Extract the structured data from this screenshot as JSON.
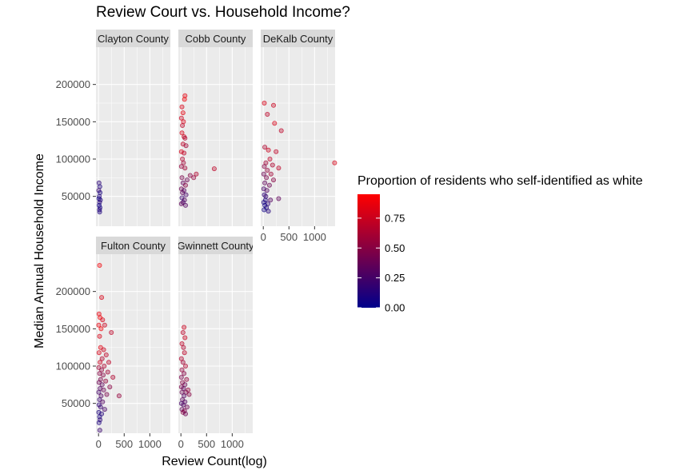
{
  "chart_data": {
    "type": "scatter",
    "title": "Review Court vs. Household Income?",
    "xlabel": "Review Count(log)",
    "ylabel": "Median Annual Household Income",
    "xlim": [
      -50,
      1400
    ],
    "ylim": [
      10000,
      250000
    ],
    "x_ticks": [
      0,
      500,
      1000
    ],
    "x_tick_labels": [
      "0",
      "500",
      "1000"
    ],
    "y_ticks": [
      50000,
      100000,
      150000,
      200000
    ],
    "y_tick_labels": [
      "50000",
      "100000",
      "150000",
      "200000"
    ],
    "grid": true,
    "legend": {
      "title": "Proportion of residents who self-identified as white",
      "position": "right",
      "ticks": [
        0.0,
        0.25,
        0.5,
        0.75
      ],
      "tick_labels": [
        "0.00",
        "0.25",
        "0.50",
        "0.75"
      ],
      "range": [
        0,
        0.95
      ],
      "color_low": "#00008B",
      "color_high": "#FF0000"
    },
    "colors": {
      "panel_bg": "#EBEBEB",
      "strip_bg": "#D9D9D9",
      "grid": "#FFFFFF"
    },
    "facets": [
      {
        "name": "Clayton County",
        "points": [
          {
            "x": 10,
            "y": 68000,
            "c": 0.15
          },
          {
            "x": 25,
            "y": 63000,
            "c": 0.1
          },
          {
            "x": 5,
            "y": 58000,
            "c": 0.2
          },
          {
            "x": 30,
            "y": 55000,
            "c": 0.08
          },
          {
            "x": 15,
            "y": 50000,
            "c": 0.12
          },
          {
            "x": 8,
            "y": 47000,
            "c": 0.05
          },
          {
            "x": 35,
            "y": 45000,
            "c": 0.1
          },
          {
            "x": 20,
            "y": 42000,
            "c": 0.15
          },
          {
            "x": 12,
            "y": 38000,
            "c": 0.05
          },
          {
            "x": 28,
            "y": 35000,
            "c": 0.08
          },
          {
            "x": 18,
            "y": 32000,
            "c": 0.12
          },
          {
            "x": 22,
            "y": 29000,
            "c": 0.1
          }
        ]
      },
      {
        "name": "Cobb County",
        "points": [
          {
            "x": 80,
            "y": 185000,
            "c": 0.85
          },
          {
            "x": 70,
            "y": 180000,
            "c": 0.9
          },
          {
            "x": 20,
            "y": 170000,
            "c": 0.8
          },
          {
            "x": 40,
            "y": 162000,
            "c": 0.85
          },
          {
            "x": 10,
            "y": 155000,
            "c": 0.75
          },
          {
            "x": 50,
            "y": 150000,
            "c": 0.8
          },
          {
            "x": 30,
            "y": 145000,
            "c": 0.7
          },
          {
            "x": 20,
            "y": 135000,
            "c": 0.8
          },
          {
            "x": 60,
            "y": 130000,
            "c": 0.75
          },
          {
            "x": 80,
            "y": 128000,
            "c": 0.65
          },
          {
            "x": 40,
            "y": 120000,
            "c": 0.7
          },
          {
            "x": 100,
            "y": 118000,
            "c": 0.6
          },
          {
            "x": 10,
            "y": 110000,
            "c": 0.8
          },
          {
            "x": 60,
            "y": 108000,
            "c": 0.7
          },
          {
            "x": 30,
            "y": 100000,
            "c": 0.65
          },
          {
            "x": 50,
            "y": 95000,
            "c": 0.6
          },
          {
            "x": 10,
            "y": 90000,
            "c": 0.55
          },
          {
            "x": 80,
            "y": 88000,
            "c": 0.6
          },
          {
            "x": 650,
            "y": 87000,
            "c": 0.7
          },
          {
            "x": 300,
            "y": 80000,
            "c": 0.65
          },
          {
            "x": 180,
            "y": 78000,
            "c": 0.5
          },
          {
            "x": 250,
            "y": 75000,
            "c": 0.55
          },
          {
            "x": 20,
            "y": 75000,
            "c": 0.45
          },
          {
            "x": 120,
            "y": 72000,
            "c": 0.4
          },
          {
            "x": 40,
            "y": 68000,
            "c": 0.35
          },
          {
            "x": 90,
            "y": 65000,
            "c": 0.5
          },
          {
            "x": 10,
            "y": 60000,
            "c": 0.4
          },
          {
            "x": 60,
            "y": 58000,
            "c": 0.3
          },
          {
            "x": 30,
            "y": 55000,
            "c": 0.35
          },
          {
            "x": 100,
            "y": 52000,
            "c": 0.25
          },
          {
            "x": 20,
            "y": 48000,
            "c": 0.2
          },
          {
            "x": 70,
            "y": 45000,
            "c": 0.3
          },
          {
            "x": 40,
            "y": 42000,
            "c": 0.25
          },
          {
            "x": 10,
            "y": 40000,
            "c": 0.35
          },
          {
            "x": 90,
            "y": 38000,
            "c": 0.3
          }
        ]
      },
      {
        "name": "DeKalb County",
        "points": [
          {
            "x": 20,
            "y": 175000,
            "c": 0.8
          },
          {
            "x": 200,
            "y": 172000,
            "c": 0.75
          },
          {
            "x": 80,
            "y": 160000,
            "c": 0.7
          },
          {
            "x": 220,
            "y": 148000,
            "c": 0.8
          },
          {
            "x": 350,
            "y": 138000,
            "c": 0.7
          },
          {
            "x": 30,
            "y": 116000,
            "c": 0.65
          },
          {
            "x": 100,
            "y": 112000,
            "c": 0.75
          },
          {
            "x": 250,
            "y": 110000,
            "c": 0.7
          },
          {
            "x": 1400,
            "y": 95000,
            "c": 0.8
          },
          {
            "x": 130,
            "y": 100000,
            "c": 0.7
          },
          {
            "x": 50,
            "y": 95000,
            "c": 0.6
          },
          {
            "x": 180,
            "y": 92000,
            "c": 0.65
          },
          {
            "x": 300,
            "y": 88000,
            "c": 0.7
          },
          {
            "x": 20,
            "y": 90000,
            "c": 0.5
          },
          {
            "x": 80,
            "y": 85000,
            "c": 0.55
          },
          {
            "x": 10,
            "y": 80000,
            "c": 0.4
          },
          {
            "x": 150,
            "y": 80000,
            "c": 0.6
          },
          {
            "x": 60,
            "y": 75000,
            "c": 0.45
          },
          {
            "x": 200,
            "y": 72000,
            "c": 0.5
          },
          {
            "x": 30,
            "y": 68000,
            "c": 0.35
          },
          {
            "x": 120,
            "y": 65000,
            "c": 0.4
          },
          {
            "x": 10,
            "y": 60000,
            "c": 0.25
          },
          {
            "x": 70,
            "y": 58000,
            "c": 0.3
          },
          {
            "x": 20,
            "y": 52000,
            "c": 0.15
          },
          {
            "x": 50,
            "y": 50000,
            "c": 0.2
          },
          {
            "x": 300,
            "y": 47000,
            "c": 0.35
          },
          {
            "x": 140,
            "y": 45000,
            "c": 0.3
          },
          {
            "x": 40,
            "y": 45000,
            "c": 0.1
          },
          {
            "x": 10,
            "y": 42000,
            "c": 0.08
          },
          {
            "x": 90,
            "y": 40000,
            "c": 0.15
          },
          {
            "x": 30,
            "y": 38000,
            "c": 0.05
          },
          {
            "x": 60,
            "y": 35000,
            "c": 0.1
          },
          {
            "x": 15,
            "y": 32000,
            "c": 0.05
          },
          {
            "x": 100,
            "y": 30000,
            "c": 0.12
          }
        ]
      },
      {
        "name": "Fulton County",
        "points": [
          {
            "x": 20,
            "y": 235000,
            "c": 0.9
          },
          {
            "x": 60,
            "y": 192000,
            "c": 0.8
          },
          {
            "x": 10,
            "y": 170000,
            "c": 0.85
          },
          {
            "x": 30,
            "y": 165000,
            "c": 0.9
          },
          {
            "x": 80,
            "y": 162000,
            "c": 0.8
          },
          {
            "x": 5,
            "y": 155000,
            "c": 0.85
          },
          {
            "x": 50,
            "y": 150000,
            "c": 0.9
          },
          {
            "x": 120,
            "y": 155000,
            "c": 0.75
          },
          {
            "x": 250,
            "y": 145000,
            "c": 0.7
          },
          {
            "x": 20,
            "y": 140000,
            "c": 0.8
          },
          {
            "x": 40,
            "y": 125000,
            "c": 0.85
          },
          {
            "x": 100,
            "y": 122000,
            "c": 0.75
          },
          {
            "x": 150,
            "y": 115000,
            "c": 0.7
          },
          {
            "x": 10,
            "y": 118000,
            "c": 0.8
          },
          {
            "x": 70,
            "y": 110000,
            "c": 0.65
          },
          {
            "x": 200,
            "y": 105000,
            "c": 0.7
          },
          {
            "x": 30,
            "y": 105000,
            "c": 0.75
          },
          {
            "x": 110,
            "y": 100000,
            "c": 0.65
          },
          {
            "x": 5,
            "y": 98000,
            "c": 0.6
          },
          {
            "x": 60,
            "y": 95000,
            "c": 0.55
          },
          {
            "x": 180,
            "y": 92000,
            "c": 0.6
          },
          {
            "x": 20,
            "y": 90000,
            "c": 0.5
          },
          {
            "x": 90,
            "y": 88000,
            "c": 0.5
          },
          {
            "x": 280,
            "y": 85000,
            "c": 0.65
          },
          {
            "x": 40,
            "y": 82000,
            "c": 0.45
          },
          {
            "x": 140,
            "y": 80000,
            "c": 0.55
          },
          {
            "x": 10,
            "y": 78000,
            "c": 0.4
          },
          {
            "x": 70,
            "y": 75000,
            "c": 0.35
          },
          {
            "x": 220,
            "y": 72000,
            "c": 0.5
          },
          {
            "x": 30,
            "y": 70000,
            "c": 0.3
          },
          {
            "x": 100,
            "y": 68000,
            "c": 0.4
          },
          {
            "x": 5,
            "y": 65000,
            "c": 0.25
          },
          {
            "x": 160,
            "y": 62000,
            "c": 0.45
          },
          {
            "x": 50,
            "y": 60000,
            "c": 0.3
          },
          {
            "x": 400,
            "y": 60000,
            "c": 0.55
          },
          {
            "x": 20,
            "y": 55000,
            "c": 0.2
          },
          {
            "x": 80,
            "y": 52000,
            "c": 0.3
          },
          {
            "x": 10,
            "y": 48000,
            "c": 0.15
          },
          {
            "x": 40,
            "y": 45000,
            "c": 0.2
          },
          {
            "x": 120,
            "y": 42000,
            "c": 0.25
          },
          {
            "x": 5,
            "y": 38000,
            "c": 0.1
          },
          {
            "x": 60,
            "y": 36000,
            "c": 0.12
          },
          {
            "x": 20,
            "y": 32000,
            "c": 0.08
          },
          {
            "x": 30,
            "y": 28000,
            "c": 0.15
          },
          {
            "x": 10,
            "y": 24000,
            "c": 0.1
          },
          {
            "x": 25,
            "y": 14000,
            "c": 0.2
          }
        ]
      },
      {
        "name": "Gwinnett County",
        "points": [
          {
            "x": 60,
            "y": 152000,
            "c": 0.75
          },
          {
            "x": 40,
            "y": 145000,
            "c": 0.7
          },
          {
            "x": 80,
            "y": 138000,
            "c": 0.75
          },
          {
            "x": 20,
            "y": 130000,
            "c": 0.7
          },
          {
            "x": 50,
            "y": 125000,
            "c": 0.65
          },
          {
            "x": 70,
            "y": 118000,
            "c": 0.7
          },
          {
            "x": 10,
            "y": 110000,
            "c": 0.65
          },
          {
            "x": 40,
            "y": 105000,
            "c": 0.6
          },
          {
            "x": 90,
            "y": 100000,
            "c": 0.65
          },
          {
            "x": 20,
            "y": 95000,
            "c": 0.55
          },
          {
            "x": 60,
            "y": 90000,
            "c": 0.5
          },
          {
            "x": 10,
            "y": 85000,
            "c": 0.45
          },
          {
            "x": 110,
            "y": 82000,
            "c": 0.55
          },
          {
            "x": 30,
            "y": 78000,
            "c": 0.5
          },
          {
            "x": 80,
            "y": 75000,
            "c": 0.4
          },
          {
            "x": 10,
            "y": 72000,
            "c": 0.45
          },
          {
            "x": 50,
            "y": 70000,
            "c": 0.35
          },
          {
            "x": 140,
            "y": 68000,
            "c": 0.55
          },
          {
            "x": 100,
            "y": 65000,
            "c": 0.45
          },
          {
            "x": 20,
            "y": 65000,
            "c": 0.4
          },
          {
            "x": 160,
            "y": 62000,
            "c": 0.5
          },
          {
            "x": 60,
            "y": 60000,
            "c": 0.3
          },
          {
            "x": 30,
            "y": 55000,
            "c": 0.35
          },
          {
            "x": 80,
            "y": 52000,
            "c": 0.3
          },
          {
            "x": 10,
            "y": 50000,
            "c": 0.25
          },
          {
            "x": 50,
            "y": 48000,
            "c": 0.3
          },
          {
            "x": 120,
            "y": 45000,
            "c": 0.4
          },
          {
            "x": 20,
            "y": 42000,
            "c": 0.35
          },
          {
            "x": 70,
            "y": 40000,
            "c": 0.45
          },
          {
            "x": 40,
            "y": 38000,
            "c": 0.5
          },
          {
            "x": 90,
            "y": 36000,
            "c": 0.4
          }
        ]
      }
    ]
  }
}
